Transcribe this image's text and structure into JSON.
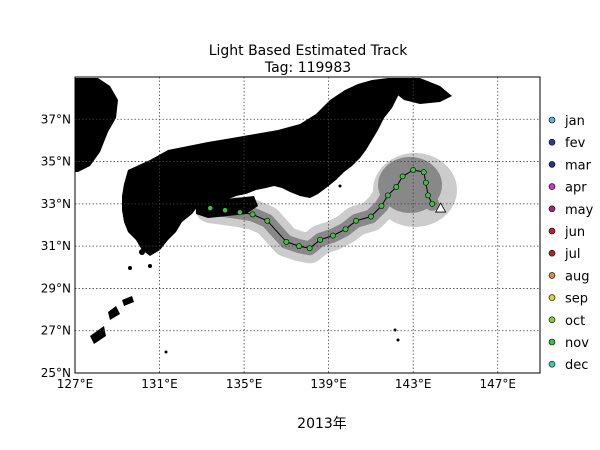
{
  "chart_data": {
    "type": "scatter",
    "title": "Light Based Estimated Track",
    "subtitle": "Tag: 119983",
    "caption": "2013年",
    "xlim": [
      127,
      149
    ],
    "ylim": [
      25,
      39
    ],
    "x_ticks": [
      {
        "value": 127,
        "label": "127°E"
      },
      {
        "value": 131,
        "label": "131°E"
      },
      {
        "value": 135,
        "label": "135°E"
      },
      {
        "value": 139,
        "label": "139°E"
      },
      {
        "value": 143,
        "label": "143°E"
      },
      {
        "value": 147,
        "label": "147°E"
      }
    ],
    "y_ticks": [
      {
        "value": 25,
        "label": "25°N"
      },
      {
        "value": 27,
        "label": "27°N"
      },
      {
        "value": 29,
        "label": "29°N"
      },
      {
        "value": 31,
        "label": "31°N"
      },
      {
        "value": 33,
        "label": "33°N"
      },
      {
        "value": 35,
        "label": "35°N"
      },
      {
        "value": 37,
        "label": "37°N"
      }
    ],
    "grid": true,
    "legend_position": "right",
    "legend": [
      {
        "label": "jan",
        "color": "#5fb3d9"
      },
      {
        "label": "fev",
        "color": "#2b3a9a"
      },
      {
        "label": "mar",
        "color": "#2a2f8f"
      },
      {
        "label": "apr",
        "color": "#c040c0"
      },
      {
        "label": "may",
        "color": "#9c2d6e"
      },
      {
        "label": "jun",
        "color": "#c0202a"
      },
      {
        "label": "jul",
        "color": "#b8221f"
      },
      {
        "label": "aug",
        "color": "#e08a40"
      },
      {
        "label": "sep",
        "color": "#d8d820"
      },
      {
        "label": "oct",
        "color": "#88c838"
      },
      {
        "label": "nov",
        "color": "#3cc040"
      },
      {
        "label": "dec",
        "color": "#40c8b0"
      }
    ],
    "track_points": [
      {
        "lon": 133.4,
        "lat": 32.8,
        "month": "nov"
      },
      {
        "lon": 134.1,
        "lat": 32.7,
        "month": "nov"
      },
      {
        "lon": 134.8,
        "lat": 32.6,
        "month": "nov"
      },
      {
        "lon": 135.4,
        "lat": 32.5,
        "month": "nov"
      },
      {
        "lon": 136.1,
        "lat": 32.2,
        "month": "nov"
      },
      {
        "lon": 137.0,
        "lat": 31.2,
        "month": "nov"
      },
      {
        "lon": 137.6,
        "lat": 31.0,
        "month": "nov"
      },
      {
        "lon": 138.1,
        "lat": 30.9,
        "month": "nov"
      },
      {
        "lon": 138.6,
        "lat": 31.3,
        "month": "nov"
      },
      {
        "lon": 139.2,
        "lat": 31.5,
        "month": "nov"
      },
      {
        "lon": 139.8,
        "lat": 31.8,
        "month": "nov"
      },
      {
        "lon": 140.3,
        "lat": 32.2,
        "month": "nov"
      },
      {
        "lon": 141.0,
        "lat": 32.4,
        "month": "nov"
      },
      {
        "lon": 141.5,
        "lat": 32.9,
        "month": "nov"
      },
      {
        "lon": 141.8,
        "lat": 33.4,
        "month": "nov"
      },
      {
        "lon": 142.2,
        "lat": 33.8,
        "month": "nov"
      },
      {
        "lon": 142.5,
        "lat": 34.3,
        "month": "nov"
      },
      {
        "lon": 143.0,
        "lat": 34.6,
        "month": "nov"
      },
      {
        "lon": 143.5,
        "lat": 34.5,
        "month": "nov"
      },
      {
        "lon": 143.6,
        "lat": 34.0,
        "month": "nov"
      },
      {
        "lon": 143.7,
        "lat": 33.4,
        "month": "nov"
      },
      {
        "lon": 143.9,
        "lat": 33.0,
        "month": "nov"
      }
    ],
    "end_marker": {
      "lon": 144.3,
      "lat": 32.8,
      "shape": "triangle",
      "color": "#ffffff"
    },
    "track_line_color": "#000000",
    "point_color": "#3cc040",
    "land_color": "#000000",
    "uncertainty_outer_color": "#cccccc",
    "uncertainty_inner_color": "#888888"
  }
}
